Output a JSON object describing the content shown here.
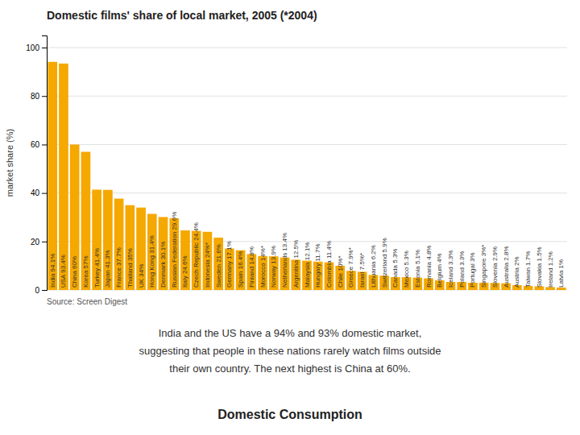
{
  "chart_data": {
    "type": "bar",
    "title": "Domestic films' share of local market, 2005 (*2004)",
    "subtitle": "Domestic Consumption",
    "ylabel": "market share (%)",
    "source": "Source: Screen Digest",
    "annotations": [
      "India and the US have a 94% and 93% domestic market,",
      "suggesting that people in these nations rarely watch films outside",
      "their own country. The next highest is China at 60%."
    ],
    "categories": [
      "India 94.1%",
      "USA 93.4%",
      "China 60%",
      "Korea 57%",
      "Turkey 41.4%",
      "Japan 41.3%",
      "France 37.7%",
      "Thailand 35%",
      "UK 34%",
      "Hong Kong 31.4%",
      "Denmark 30.1%",
      "Russian Federation 29.6%",
      "Italy 24.6%",
      "Czech Republic 24.4%",
      "Indonesia 24%*",
      "Sweden 21.6%",
      "Germany 17.1%",
      "Spain 16.4%",
      "Finland 14.8%",
      "Morocco 14%*",
      "Norway 13.9%",
      "Netherlands 13.4%",
      "Argentina 12.5%",
      "Malaysia 12.1%",
      "Hungary 11.7%",
      "Colombia 11.4%",
      "Chile 10%*",
      "Greece 7.9%*",
      "Israel 7.5%*",
      "Lithuania 6.2%",
      "Switzerland 5.9%",
      "Canada 5.3%",
      "Mexico 5.3%",
      "Estonia 5.1%",
      "Romania 4.8%",
      "Belgium 4%",
      "Iceland 3.3%",
      "Poland 3.3%",
      "Portugal 3%",
      "Singapore 3%*",
      "Slovenia 2.9%",
      "Australia 2.8%",
      "Austria 2%",
      "Taiwan 1.7%",
      "Slovakia 1.5%",
      "Ireland 1.2%",
      "Latvia 1%"
    ],
    "values": [
      94.1,
      93.4,
      60,
      57,
      41.4,
      41.3,
      37.7,
      35,
      34,
      31.4,
      30.1,
      29.6,
      24.6,
      24.4,
      24,
      21.6,
      17.1,
      16.4,
      14.8,
      14,
      13.9,
      13.4,
      12.5,
      12.1,
      11.7,
      11.4,
      10,
      7.9,
      7.5,
      6.2,
      5.9,
      5.3,
      5.3,
      5.1,
      4.8,
      4,
      3.3,
      3.3,
      3,
      3,
      2.9,
      2.8,
      2,
      1.7,
      1.5,
      1.2,
      1
    ],
    "color": "#F5A800",
    "ylim": [
      0,
      105
    ],
    "yticks": [
      0,
      20,
      40,
      60,
      80,
      100
    ],
    "grid": true,
    "tick_labels": "y"
  }
}
